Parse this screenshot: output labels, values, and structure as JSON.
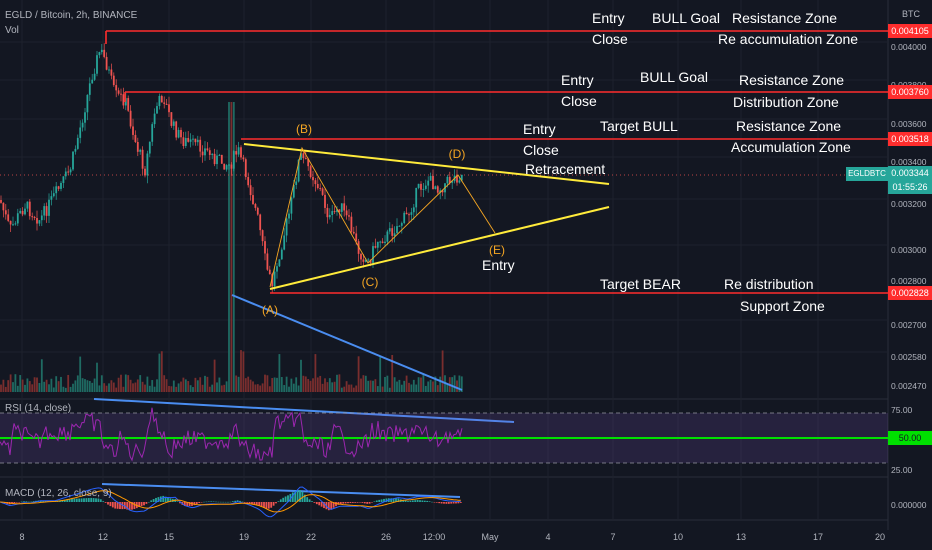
{
  "header": {
    "symbol_line": "EGLD / Bitcoin, 2h, BINANCE",
    "vol_label": "Vol",
    "rsi_label": "RSI (14, close)",
    "macd_label": "MACD (12, 26, close, 9)",
    "currency": "BTC"
  },
  "colors": {
    "background": "#131722",
    "resistance_line": "#ff2d2d",
    "triangle": "#ffeb3b",
    "trendline": "#2962ff",
    "up_candle": "#26a69a",
    "down_candle": "#ef5350",
    "rsi_line": "#9c27b0",
    "rsi_mid": "#00e000",
    "wave_label": "#f5a623"
  },
  "levels": [
    {
      "value": "0.004105",
      "annotations": [
        {
          "text": "Entry"
        },
        {
          "text": "BULL Goal"
        },
        {
          "text": "Resistance Zone"
        },
        {
          "text": "Close"
        },
        {
          "text": "Re accumulation Zone"
        }
      ]
    },
    {
      "value": "0.003760",
      "annotations": [
        {
          "text": "Entry"
        },
        {
          "text": "BULL Goal"
        },
        {
          "text": "Resistance Zone"
        },
        {
          "text": "Close"
        },
        {
          "text": "Distribution Zone"
        }
      ]
    },
    {
      "value": "0.003518",
      "annotations": [
        {
          "text": "Entry"
        },
        {
          "text": "Target BULL"
        },
        {
          "text": "Resistance Zone"
        },
        {
          "text": "Close"
        },
        {
          "text": "Accumulation Zone"
        },
        {
          "text": "Retracement"
        }
      ]
    },
    {
      "value": "0.002828",
      "annotations": [
        {
          "text": "Target BEAR"
        },
        {
          "text": "Re distribution"
        },
        {
          "text": "Support Zone"
        },
        {
          "text": "Entry"
        }
      ]
    }
  ],
  "current_price": {
    "symbol": "EGLDBTC",
    "value": "0.003344",
    "countdown": "01:55:26"
  },
  "waves": [
    "(A)",
    "(B)",
    "(C)",
    "(D)",
    "(E)"
  ],
  "price_axis_ticks": [
    "0.004000",
    "0.003800",
    "0.003600",
    "0.003400",
    "0.003200",
    "0.003000",
    "0.002800",
    "0.002700",
    "0.002580",
    "0.002470"
  ],
  "rsi_axis": {
    "upper": "75.00",
    "mid": "50.00",
    "lower": "25.00"
  },
  "macd_axis": {
    "zero": "0.000000"
  },
  "date_labels": [
    "8",
    "12",
    "15",
    "19",
    "22",
    "26",
    "12:00",
    "May",
    "4",
    "7",
    "10",
    "13",
    "17",
    "20"
  ],
  "chart_data": {
    "type": "candlestick",
    "title": "EGLD / Bitcoin, 2h, BINANCE",
    "ylim": [
      0.00247,
      0.00425
    ],
    "horizontal_levels": [
      0.004105,
      0.00376,
      0.003518,
      0.002828
    ],
    "current_price": 0.003344,
    "approx_closes_by_day": [
      {
        "x": "8",
        "y": 0.0031
      },
      {
        "x": "12",
        "y": 0.00395
      },
      {
        "x": "15",
        "y": 0.0035
      },
      {
        "x": "19",
        "y": 0.0034
      },
      {
        "x": "20",
        "y": 0.00285
      },
      {
        "x": "22",
        "y": 0.0033
      },
      {
        "x": "26",
        "y": 0.003
      },
      {
        "x": "12:00",
        "y": 0.00334
      }
    ],
    "triangle": {
      "upper": [
        [
          "18",
          0.0035
        ],
        [
          "7",
          0.0033
        ]
      ],
      "lower": [
        [
          "20",
          0.00283
        ],
        [
          "7",
          0.0032
        ]
      ]
    },
    "wave_points": [
      {
        "label": "(A)",
        "x": "20",
        "y": 0.00283
      },
      {
        "label": "(B)",
        "x": "21",
        "y": 0.0035
      },
      {
        "label": "(C)",
        "x": "25",
        "y": 0.00293
      },
      {
        "label": "(D)",
        "x": "12:00",
        "y": 0.00335
      },
      {
        "label": "(E)",
        "x": "1",
        "y": 0.00302
      }
    ],
    "rsi": {
      "levels": [
        75,
        50,
        25
      ]
    },
    "macd": {
      "zero": 0
    }
  }
}
